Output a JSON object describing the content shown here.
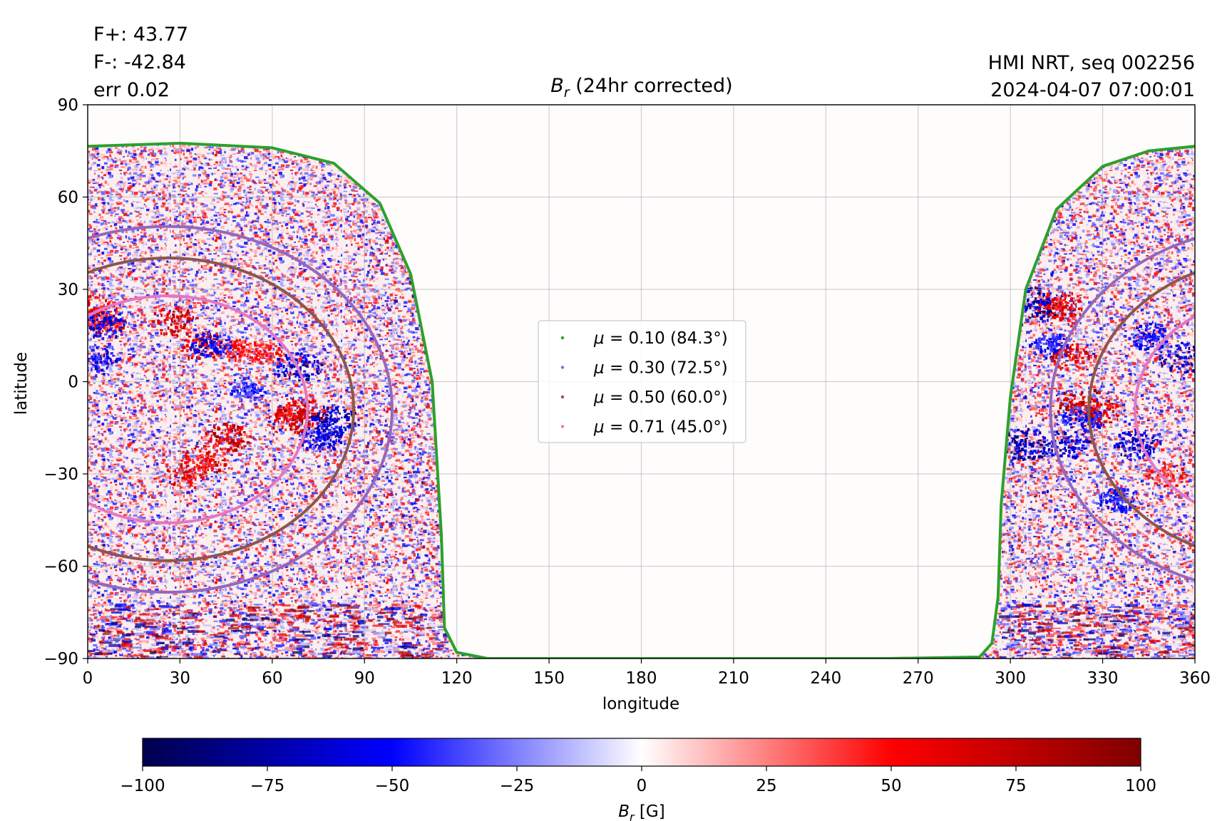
{
  "annotations": {
    "flux_pos": "F+: 43.77",
    "flux_neg": "F-: -42.84",
    "err": "err 0.02",
    "instrument": "HMI NRT, seq 002256",
    "datetime": "2024-04-07 07:00:01"
  },
  "chart_data": [
    {
      "type": "heatmap",
      "title_symbol": "B",
      "title_sub": "r",
      "title_rest": " (24hr corrected)",
      "xlabel": "longitude",
      "ylabel": "latitude",
      "xlim": [
        0,
        360
      ],
      "ylim": [
        -90,
        90
      ],
      "xticks": [
        0,
        30,
        60,
        90,
        120,
        150,
        180,
        210,
        240,
        270,
        300,
        330,
        360
      ],
      "yticks": [
        -90,
        -60,
        -30,
        0,
        30,
        60,
        90
      ],
      "ytick_labels": [
        "−90",
        "−60",
        "−30",
        "0",
        "30",
        "60",
        "90"
      ],
      "grid": true,
      "legend_position": "center",
      "visible_disk_longitude_ranges": [
        [
          0,
          116
        ],
        [
          296,
          360
        ]
      ],
      "series": [
        {
          "name": "μ = 0.10 (84.3°)",
          "mu": "0.10",
          "angle": "84.3",
          "color": "#2ca02c",
          "center": [
            26,
            -9
          ],
          "radius": 84.3,
          "points": [
            [
              0,
              76.5
            ],
            [
              30,
              77.5
            ],
            [
              60,
              76
            ],
            [
              80,
              71
            ],
            [
              95,
              58
            ],
            [
              105,
              35
            ],
            [
              112,
              0
            ],
            [
              115,
              -50
            ],
            [
              116,
              -80
            ],
            [
              120,
              -88
            ],
            [
              130,
              -90
            ],
            [
              290,
              -89.5
            ],
            [
              294,
              -85
            ],
            [
              296,
              -70
            ],
            [
              297,
              -40
            ],
            [
              300,
              -5
            ],
            [
              305,
              30
            ],
            [
              315,
              56
            ],
            [
              330,
              70
            ],
            [
              345,
              75
            ],
            [
              360,
              76.5
            ]
          ]
        },
        {
          "name": "μ = 0.30 (72.5°)",
          "mu": "0.30",
          "angle": "72.5",
          "color": "#9467bd",
          "center": [
            26,
            -9
          ],
          "radius": 72.5
        },
        {
          "name": "μ = 0.50 (60.0°)",
          "mu": "0.50",
          "angle": "60.0",
          "color": "#8c564b",
          "center": [
            26,
            -9
          ],
          "radius": 60.0
        },
        {
          "name": "μ = 0.71 (45.0°)",
          "mu": "0.71",
          "angle": "45.0",
          "color": "#e377c2",
          "center": [
            26,
            -9
          ],
          "radius": 45.0
        }
      ],
      "field_regions": [
        {
          "lon": 28,
          "lat": 20,
          "value": 80
        },
        {
          "lon": 37,
          "lat": 12,
          "value": 70
        },
        {
          "lon": 50,
          "lat": 10,
          "value": 55
        },
        {
          "lon": 58,
          "lat": 10,
          "value": 50
        },
        {
          "lon": 45,
          "lat": -18,
          "value": 80
        },
        {
          "lon": 38,
          "lat": -25,
          "value": 70
        },
        {
          "lon": 32,
          "lat": -30,
          "value": 65
        },
        {
          "lon": 65,
          "lat": -12,
          "value": 75
        },
        {
          "lon": 69,
          "lat": -10,
          "value": 80
        },
        {
          "lon": 2,
          "lat": 24,
          "value": 70
        },
        {
          "lon": 5,
          "lat": 20,
          "value": 60
        },
        {
          "lon": 3,
          "lat": 8,
          "value": -60
        },
        {
          "lon": 5,
          "lat": 19,
          "value": -70
        },
        {
          "lon": 40,
          "lat": 12,
          "value": -65
        },
        {
          "lon": 68,
          "lat": 5,
          "value": -80
        },
        {
          "lon": 80,
          "lat": -12,
          "value": -85
        },
        {
          "lon": 76,
          "lat": -18,
          "value": -70
        },
        {
          "lon": 52,
          "lat": -2,
          "value": -50
        },
        {
          "lon": 309,
          "lat": 26,
          "value": -90
        },
        {
          "lon": 316,
          "lat": 25,
          "value": 75
        },
        {
          "lon": 313,
          "lat": 12,
          "value": -60
        },
        {
          "lon": 320,
          "lat": 8,
          "value": 70
        },
        {
          "lon": 323,
          "lat": -7,
          "value": 90
        },
        {
          "lon": 328,
          "lat": -10,
          "value": 75
        },
        {
          "lon": 305,
          "lat": -20,
          "value": -90
        },
        {
          "lon": 318,
          "lat": -20,
          "value": -70
        },
        {
          "lon": 323,
          "lat": -12,
          "value": -60
        },
        {
          "lon": 341,
          "lat": -20,
          "value": -75
        },
        {
          "lon": 345,
          "lat": 15,
          "value": -60
        },
        {
          "lon": 356,
          "lat": 8,
          "value": -80
        },
        {
          "lon": 350,
          "lat": -30,
          "value": 60
        },
        {
          "lon": 335,
          "lat": -38,
          "value": -55
        }
      ]
    },
    {
      "type": "colorbar",
      "label_symbol": "B",
      "label_sub": "r",
      "label_rest": " [G]",
      "range": [
        -100,
        100
      ],
      "ticks": [
        -100,
        -75,
        -50,
        -25,
        0,
        25,
        50,
        75,
        100
      ],
      "tick_labels": [
        "−100",
        "−75",
        "−50",
        "−25",
        "0",
        "25",
        "50",
        "75",
        "100"
      ],
      "colormap": "seismic",
      "colors": [
        "#00004d",
        "#0000ff",
        "#ffffff",
        "#ff0000",
        "#800000"
      ]
    }
  ]
}
